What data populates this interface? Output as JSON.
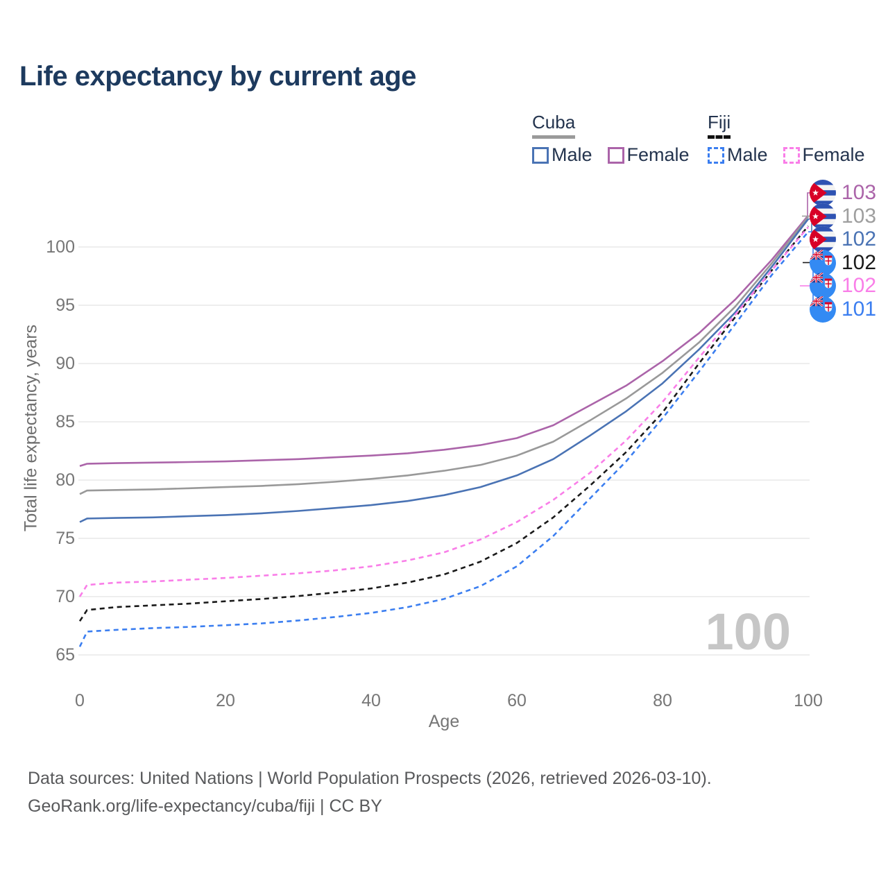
{
  "title": "Life expectancy by current age",
  "legend": {
    "cuba": {
      "title": "Cuba",
      "style": "solid",
      "underline_color": "#9a9a9a",
      "male_label": "Male",
      "female_label": "Female",
      "male_color": "#4a73b4",
      "female_color": "#ab64a9"
    },
    "fiji": {
      "title": "Fiji",
      "style": "dashed",
      "underline_color": "#111111",
      "male_label": "Male",
      "female_label": "Female",
      "male_color": "#3b7ef0",
      "female_color": "#f97ee8"
    }
  },
  "watermark": "100",
  "footer": {
    "line1": "Data sources: United Nations | World Population Prospects (2026, retrieved 2026-03-10).",
    "line2": "GeoRank.org/life-expectancy/cuba/fiji | CC BY"
  },
  "chart_data": {
    "type": "line",
    "title": "Life expectancy by current age",
    "xlabel": "Age",
    "ylabel": "Total life expectancy, years",
    "xlim": [
      0,
      100
    ],
    "ylim": [
      63,
      104
    ],
    "grid": "horizontal-only",
    "grid_color": "#e9e9e9",
    "x_ticks": [
      "0",
      "20",
      "40",
      "60",
      "80",
      "100"
    ],
    "x_tick_values": [
      0,
      20,
      40,
      60,
      80,
      100
    ],
    "y_ticks": [
      "100",
      "95",
      "90",
      "85",
      "80",
      "75",
      "70",
      "65"
    ],
    "y_tick_values": [
      100,
      95,
      90,
      85,
      80,
      75,
      70,
      65
    ],
    "x": [
      0,
      1,
      5,
      10,
      15,
      20,
      25,
      30,
      35,
      40,
      45,
      50,
      55,
      60,
      65,
      70,
      75,
      80,
      85,
      90,
      95,
      100
    ],
    "series": [
      {
        "name": "Cuba Female",
        "country": "Cuba",
        "sex": "Female",
        "style": "solid",
        "color": "#ab64a9",
        "values": [
          81.2,
          81.4,
          81.45,
          81.5,
          81.55,
          81.6,
          81.7,
          81.8,
          81.95,
          82.1,
          82.3,
          82.6,
          83.0,
          83.6,
          84.7,
          86.4,
          88.1,
          90.2,
          92.6,
          95.5,
          98.9,
          102.7
        ]
      },
      {
        "name": "Cuba Total",
        "country": "Cuba",
        "sex": "Both",
        "style": "solid",
        "color": "#999999",
        "values": [
          78.8,
          79.1,
          79.15,
          79.2,
          79.3,
          79.4,
          79.5,
          79.65,
          79.85,
          80.1,
          80.4,
          80.8,
          81.3,
          82.1,
          83.3,
          85.1,
          87.0,
          89.2,
          91.8,
          94.9,
          98.6,
          102.6
        ]
      },
      {
        "name": "Cuba Male",
        "country": "Cuba",
        "sex": "Male",
        "style": "solid",
        "color": "#4a73b4",
        "values": [
          76.4,
          76.7,
          76.75,
          76.8,
          76.9,
          77.0,
          77.15,
          77.35,
          77.6,
          77.85,
          78.2,
          78.7,
          79.4,
          80.4,
          81.8,
          83.8,
          85.9,
          88.3,
          91.2,
          94.4,
          98.3,
          102.4
        ]
      },
      {
        "name": "Fiji Total",
        "country": "Fiji",
        "sex": "Both",
        "style": "dashed",
        "color": "#1a1a1a",
        "values": [
          67.9,
          68.85,
          69.1,
          69.25,
          69.4,
          69.6,
          69.8,
          70.05,
          70.35,
          70.7,
          71.2,
          71.9,
          73.0,
          74.6,
          76.8,
          79.5,
          82.4,
          85.8,
          90.0,
          94.0,
          98.0,
          101.8
        ]
      },
      {
        "name": "Fiji Female",
        "country": "Fiji",
        "sex": "Female",
        "style": "dashed",
        "color": "#f97ee8",
        "values": [
          70.0,
          71.0,
          71.2,
          71.3,
          71.45,
          71.6,
          71.8,
          72.0,
          72.25,
          72.6,
          73.1,
          73.8,
          74.9,
          76.4,
          78.3,
          80.6,
          83.4,
          86.7,
          90.5,
          94.2,
          98.0,
          101.7
        ]
      },
      {
        "name": "Fiji Male",
        "country": "Fiji",
        "sex": "Male",
        "style": "dashed",
        "color": "#3b7ef0",
        "values": [
          65.7,
          67.0,
          67.15,
          67.3,
          67.4,
          67.55,
          67.7,
          67.95,
          68.25,
          68.6,
          69.1,
          69.8,
          70.9,
          72.6,
          75.2,
          78.4,
          81.6,
          85.3,
          89.3,
          93.4,
          97.6,
          101.3
        ]
      }
    ],
    "end_labels": [
      {
        "icon": "cuba-flag-icon",
        "value": "103",
        "color": "#ab64a9",
        "series": "Cuba Female"
      },
      {
        "icon": "cuba-flag-icon",
        "value": "103",
        "color": "#9e9e9e",
        "series": "Cuba Total"
      },
      {
        "icon": "cuba-flag-icon",
        "value": "102",
        "color": "#4a73b4",
        "series": "Cuba Male"
      },
      {
        "icon": "fiji-flag-icon",
        "value": "102",
        "color": "#1a1a1a",
        "series": "Fiji Total"
      },
      {
        "icon": "fiji-flag-icon",
        "value": "102",
        "color": "#f97ee8",
        "series": "Fiji Female"
      },
      {
        "icon": "fiji-flag-icon",
        "value": "101",
        "color": "#3b7ef0",
        "series": "Fiji Male"
      }
    ],
    "legend_position": "top-right"
  }
}
